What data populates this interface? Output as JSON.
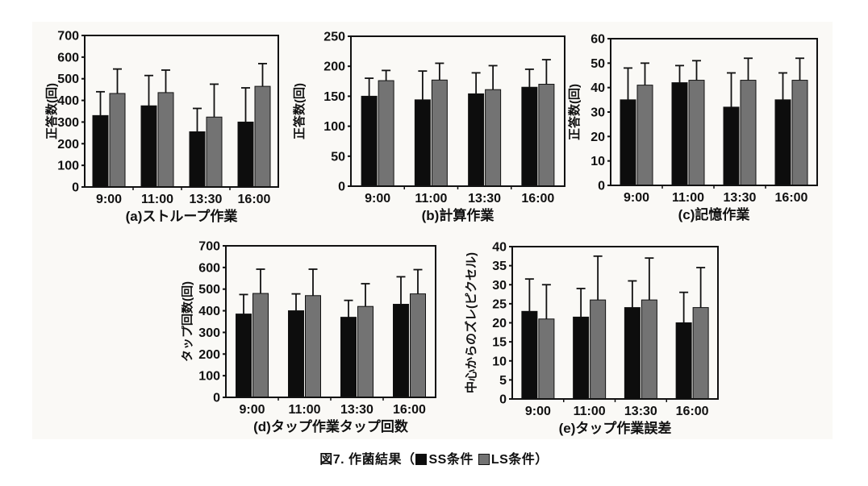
{
  "figure": {
    "caption": {
      "prefix": "図7. 作菌結果（",
      "legend": [
        {
          "key": "ss",
          "label": "SS条件",
          "color": "#0d0d0d"
        },
        {
          "key": "ls",
          "label": "LS条件",
          "color": "#737373"
        }
      ],
      "suffix": "）"
    }
  },
  "palette": {
    "panel_bg": "#faf9f6",
    "axis": "#111111",
    "ss_bar": "#0d0d0d",
    "ls_bar": "#737373",
    "text": "#111111"
  },
  "chart_data": [
    {
      "id": "a",
      "type": "bar",
      "title": "(a)ストループ作業",
      "ylabel": "正答数(回)",
      "xlabel": "",
      "ylim": [
        0,
        700
      ],
      "ytick": 100,
      "grid": false,
      "categories": [
        "9:00",
        "11:00",
        "13:30",
        "16:00"
      ],
      "series": [
        {
          "name": "SS条件",
          "key": "ss",
          "color": "#0d0d0d",
          "values": [
            330,
            375,
            255,
            300
          ],
          "errors": [
            110,
            140,
            108,
            158
          ]
        },
        {
          "name": "LS条件",
          "key": "ls",
          "color": "#737373",
          "values": [
            432,
            436,
            323,
            465
          ],
          "errors": [
            113,
            104,
            152,
            105
          ]
        }
      ]
    },
    {
      "id": "b",
      "type": "bar",
      "title": "(b)計算作業",
      "ylabel": "正答数(回)",
      "xlabel": "",
      "ylim": [
        0,
        250
      ],
      "ytick": 50,
      "grid": false,
      "categories": [
        "9:00",
        "11:00",
        "13:30",
        "16:00"
      ],
      "series": [
        {
          "name": "SS条件",
          "key": "ss",
          "color": "#0d0d0d",
          "values": [
            150,
            144,
            154,
            165
          ],
          "errors": [
            30,
            48,
            35,
            30
          ]
        },
        {
          "name": "LS条件",
          "key": "ls",
          "color": "#737373",
          "values": [
            176,
            177,
            161,
            170
          ],
          "errors": [
            17,
            28,
            40,
            41
          ]
        }
      ]
    },
    {
      "id": "c",
      "type": "bar",
      "title": "(c)記憶作業",
      "ylabel": "正答数(回)",
      "xlabel": "",
      "ylim": [
        0,
        60
      ],
      "ytick": 10,
      "grid": false,
      "categories": [
        "9:00",
        "11:00",
        "13:30",
        "16:00"
      ],
      "series": [
        {
          "name": "SS条件",
          "key": "ss",
          "color": "#0d0d0d",
          "values": [
            35,
            42,
            32,
            35
          ],
          "errors": [
            13,
            7,
            14,
            11
          ]
        },
        {
          "name": "LS条件",
          "key": "ls",
          "color": "#737373",
          "values": [
            41,
            43,
            43,
            43
          ],
          "errors": [
            9,
            8,
            9,
            9
          ]
        }
      ]
    },
    {
      "id": "d",
      "type": "bar",
      "title": "(d)タップ作業タップ回数",
      "ylabel": "タップ回数(回)",
      "xlabel": "",
      "ylim": [
        0,
        700
      ],
      "ytick": 100,
      "grid": false,
      "categories": [
        "9:00",
        "11:00",
        "13:30",
        "16:00"
      ],
      "series": [
        {
          "name": "SS条件",
          "key": "ss",
          "color": "#0d0d0d",
          "values": [
            385,
            400,
            370,
            430
          ],
          "errors": [
            90,
            78,
            78,
            127
          ]
        },
        {
          "name": "LS条件",
          "key": "ls",
          "color": "#737373",
          "values": [
            480,
            470,
            420,
            478
          ],
          "errors": [
            112,
            122,
            105,
            112
          ]
        }
      ]
    },
    {
      "id": "e",
      "type": "bar",
      "title": "(e)タップ作業誤差",
      "ylabel": "中心からのズレ(ピクセル)",
      "xlabel": "",
      "ylim": [
        0,
        40
      ],
      "ytick": 5,
      "grid": false,
      "categories": [
        "9:00",
        "11:00",
        "13:30",
        "16:00"
      ],
      "series": [
        {
          "name": "SS条件",
          "key": "ss",
          "color": "#0d0d0d",
          "values": [
            23,
            21.5,
            24,
            20
          ],
          "errors": [
            8.5,
            7.5,
            7,
            8
          ]
        },
        {
          "name": "LS条件",
          "key": "ls",
          "color": "#737373",
          "values": [
            21,
            26,
            26,
            24
          ],
          "errors": [
            9,
            11.5,
            11,
            10.5
          ]
        }
      ]
    }
  ]
}
